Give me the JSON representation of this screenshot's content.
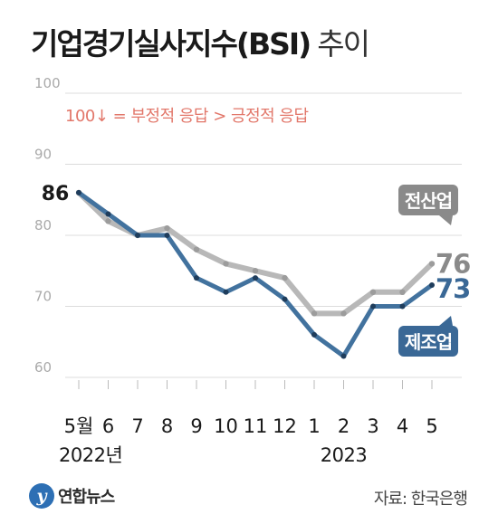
{
  "title": {
    "main": "기업경기실사지수(BSI)",
    "sub": "추이"
  },
  "note": "100↓ = 부정적 응답 > 긍정적 응답",
  "chart_data": {
    "type": "line",
    "categories": [
      "5월",
      "6",
      "7",
      "8",
      "9",
      "10",
      "11",
      "12",
      "1",
      "2",
      "3",
      "4",
      "5"
    ],
    "year_labels": [
      {
        "index": 0,
        "text": "2022년"
      },
      {
        "index": 9,
        "text": "2023"
      }
    ],
    "yticks": [
      60,
      70,
      80,
      90,
      100
    ],
    "ylim": [
      60,
      100
    ],
    "series": [
      {
        "name": "전산업",
        "color": "#b8b8b8",
        "label_color": "#8a8a8a",
        "values": [
          86,
          82,
          80,
          81,
          78,
          76,
          75,
          74,
          69,
          69,
          72,
          72,
          76
        ]
      },
      {
        "name": "제조업",
        "color": "#42729e",
        "label_color": "#3a6896",
        "values": [
          86,
          83,
          80,
          80,
          74,
          72,
          74,
          71,
          66,
          63,
          70,
          70,
          73
        ]
      }
    ],
    "start_label": "86",
    "end_labels": [
      "76",
      "73"
    ]
  },
  "footer": {
    "logo_mark": "y",
    "logo_text": "연합뉴스",
    "source": "자료: 한국은행"
  }
}
